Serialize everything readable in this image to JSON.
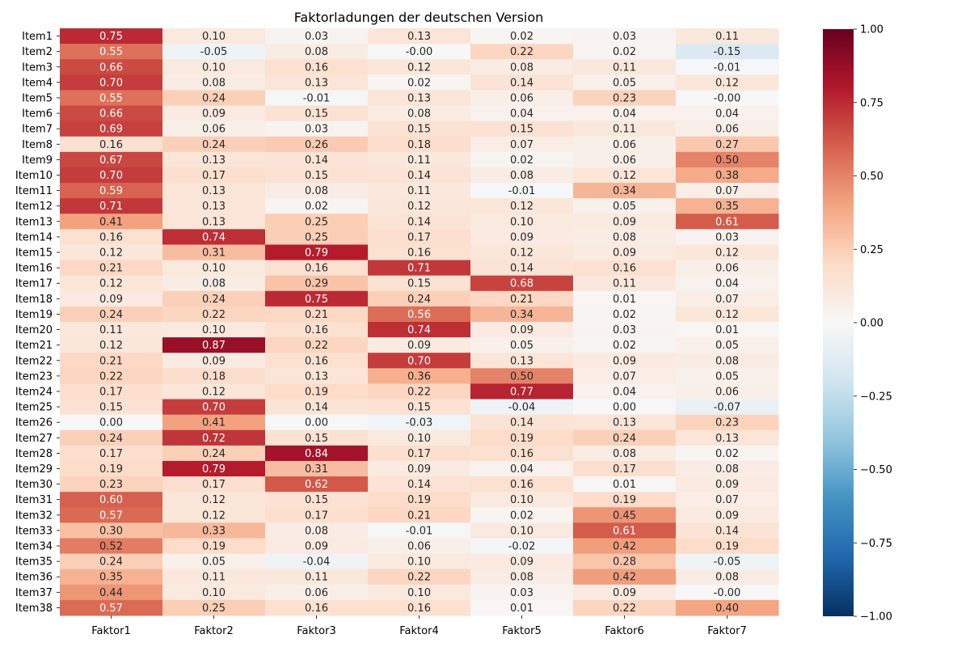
{
  "chart_data": {
    "type": "heatmap",
    "title": "Faktorladungen der deutschen Version",
    "rows": [
      "Item1",
      "Item2",
      "Item3",
      "Item4",
      "Item5",
      "Item6",
      "Item7",
      "Item8",
      "Item9",
      "Item10",
      "Item11",
      "Item12",
      "Item13",
      "Item14",
      "Item15",
      "Item16",
      "Item17",
      "Item18",
      "Item19",
      "Item20",
      "Item21",
      "Item22",
      "Item23",
      "Item24",
      "Item25",
      "Item26",
      "Item27",
      "Item28",
      "Item29",
      "Item30",
      "Item31",
      "Item32",
      "Item33",
      "Item34",
      "Item35",
      "Item36",
      "Item37",
      "Item38"
    ],
    "columns": [
      "Faktor1",
      "Faktor2",
      "Faktor3",
      "Faktor4",
      "Faktor5",
      "Faktor6",
      "Faktor7"
    ],
    "values": [
      [
        0.75,
        0.1,
        0.03,
        0.13,
        0.02,
        0.03,
        0.11
      ],
      [
        0.55,
        -0.05,
        0.08,
        -0.0,
        0.22,
        0.02,
        -0.15
      ],
      [
        0.66,
        0.1,
        0.16,
        0.12,
        0.08,
        0.11,
        -0.01
      ],
      [
        0.7,
        0.08,
        0.13,
        0.02,
        0.14,
        0.05,
        0.12
      ],
      [
        0.55,
        0.24,
        -0.01,
        0.13,
        0.06,
        0.23,
        -0.0
      ],
      [
        0.66,
        0.09,
        0.15,
        0.08,
        0.04,
        0.04,
        0.04
      ],
      [
        0.69,
        0.06,
        0.03,
        0.15,
        0.15,
        0.11,
        0.06
      ],
      [
        0.16,
        0.24,
        0.26,
        0.18,
        0.07,
        0.06,
        0.27
      ],
      [
        0.67,
        0.13,
        0.14,
        0.11,
        0.02,
        0.06,
        0.5
      ],
      [
        0.7,
        0.17,
        0.15,
        0.14,
        0.08,
        0.12,
        0.38
      ],
      [
        0.59,
        0.13,
        0.08,
        0.11,
        -0.01,
        0.34,
        0.07
      ],
      [
        0.71,
        0.13,
        0.02,
        0.12,
        0.12,
        0.05,
        0.35
      ],
      [
        0.41,
        0.13,
        0.25,
        0.14,
        0.1,
        0.09,
        0.61
      ],
      [
        0.16,
        0.74,
        0.25,
        0.17,
        0.09,
        0.08,
        0.03
      ],
      [
        0.12,
        0.31,
        0.79,
        0.16,
        0.12,
        0.09,
        0.12
      ],
      [
        0.21,
        0.1,
        0.16,
        0.71,
        0.14,
        0.16,
        0.06
      ],
      [
        0.12,
        0.08,
        0.29,
        0.15,
        0.68,
        0.11,
        0.04
      ],
      [
        0.09,
        0.24,
        0.75,
        0.24,
        0.21,
        0.01,
        0.07
      ],
      [
        0.24,
        0.22,
        0.21,
        0.56,
        0.34,
        0.02,
        0.12
      ],
      [
        0.11,
        0.1,
        0.16,
        0.74,
        0.09,
        0.03,
        0.01
      ],
      [
        0.12,
        0.87,
        0.22,
        0.09,
        0.05,
        0.02,
        0.05
      ],
      [
        0.21,
        0.09,
        0.16,
        0.7,
        0.13,
        0.09,
        0.08
      ],
      [
        0.22,
        0.18,
        0.13,
        0.36,
        0.5,
        0.07,
        0.05
      ],
      [
        0.17,
        0.12,
        0.19,
        0.22,
        0.77,
        0.04,
        0.06
      ],
      [
        0.15,
        0.7,
        0.14,
        0.15,
        -0.04,
        0.0,
        -0.07
      ],
      [
        0.0,
        0.41,
        0.0,
        -0.03,
        0.14,
        0.13,
        0.23
      ],
      [
        0.24,
        0.72,
        0.15,
        0.1,
        0.19,
        0.24,
        0.13
      ],
      [
        0.17,
        0.24,
        0.84,
        0.17,
        0.16,
        0.08,
        0.02
      ],
      [
        0.19,
        0.79,
        0.31,
        0.09,
        0.04,
        0.17,
        0.08
      ],
      [
        0.23,
        0.17,
        0.62,
        0.14,
        0.16,
        0.01,
        0.09
      ],
      [
        0.6,
        0.12,
        0.15,
        0.19,
        0.1,
        0.19,
        0.07
      ],
      [
        0.57,
        0.12,
        0.17,
        0.21,
        0.02,
        0.45,
        0.09
      ],
      [
        0.3,
        0.33,
        0.08,
        -0.01,
        0.1,
        0.61,
        0.14
      ],
      [
        0.52,
        0.19,
        0.09,
        0.06,
        -0.02,
        0.42,
        0.19
      ],
      [
        0.24,
        0.05,
        -0.04,
        0.1,
        0.09,
        0.28,
        -0.05
      ],
      [
        0.35,
        0.11,
        0.11,
        0.22,
        0.08,
        0.42,
        0.08
      ],
      [
        0.44,
        0.1,
        0.06,
        0.1,
        0.03,
        0.09,
        -0.0
      ],
      [
        0.57,
        0.25,
        0.16,
        0.16,
        0.01,
        0.22,
        0.4
      ]
    ],
    "value_format": "2 decimals",
    "colormap": "RdBu_r",
    "vmin": -1.0,
    "vmax": 1.0,
    "colorbar_ticks": [
      "1.00",
      "0.75",
      "0.50",
      "0.25",
      "0.00",
      "−0.25",
      "−0.50",
      "−0.75",
      "−1.00"
    ],
    "colorbar_tick_values": [
      1.0,
      0.75,
      0.5,
      0.25,
      0.0,
      -0.25,
      -0.5,
      -0.75,
      -1.0
    ],
    "colorbar_placement": "right",
    "grid": false
  }
}
